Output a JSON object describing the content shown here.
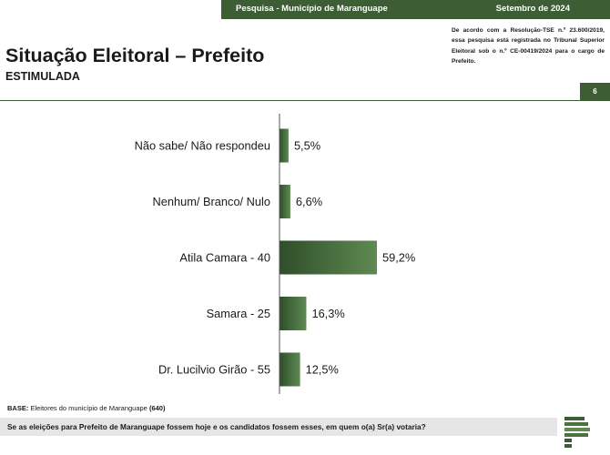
{
  "header": {
    "survey_label": "Pesquisa - Município de Maranguape",
    "date_label": "Setembro de 2024"
  },
  "title": "Situação Eleitoral – Prefeito",
  "subtitle": "ESTIMULADA",
  "registry_note": "De acordo com a Resolução-TSE n.º 23.600/2019, essa pesquisa está registrada no Tribunal Superior Eleitoral sob o n.º CE-00419/2024 para o cargo de Prefeito.",
  "page_number": "6",
  "base": {
    "prefix": "BASE:",
    "text": "Eleitores do município de Maranguape",
    "count": "(640)"
  },
  "question": "Se as eleições para Prefeito de Maranguape fossem hoje e os candidatos fossem esses, em quem o(a) Sr(a) votaria?",
  "colors": {
    "brand_green": "#3d5e35",
    "bar_dark": "#2f4d2a",
    "bar_light": "#5f8a52"
  },
  "chart_data": {
    "type": "bar",
    "orientation": "horizontal",
    "categories": [
      "Não sabe/ Não respondeu",
      "Nenhum/ Branco/ Nulo",
      "Atila Camara - 40",
      "Samara - 25",
      "Dr. Lucilvio Girão - 55"
    ],
    "values": [
      5.5,
      6.6,
      59.2,
      16.3,
      12.5
    ],
    "value_labels": [
      "5,5%",
      "6,6%",
      "59,2%",
      "16,3%",
      "12,5%"
    ],
    "unit": "%",
    "xlim": [
      0,
      100
    ],
    "grid": false,
    "legend": "none"
  }
}
